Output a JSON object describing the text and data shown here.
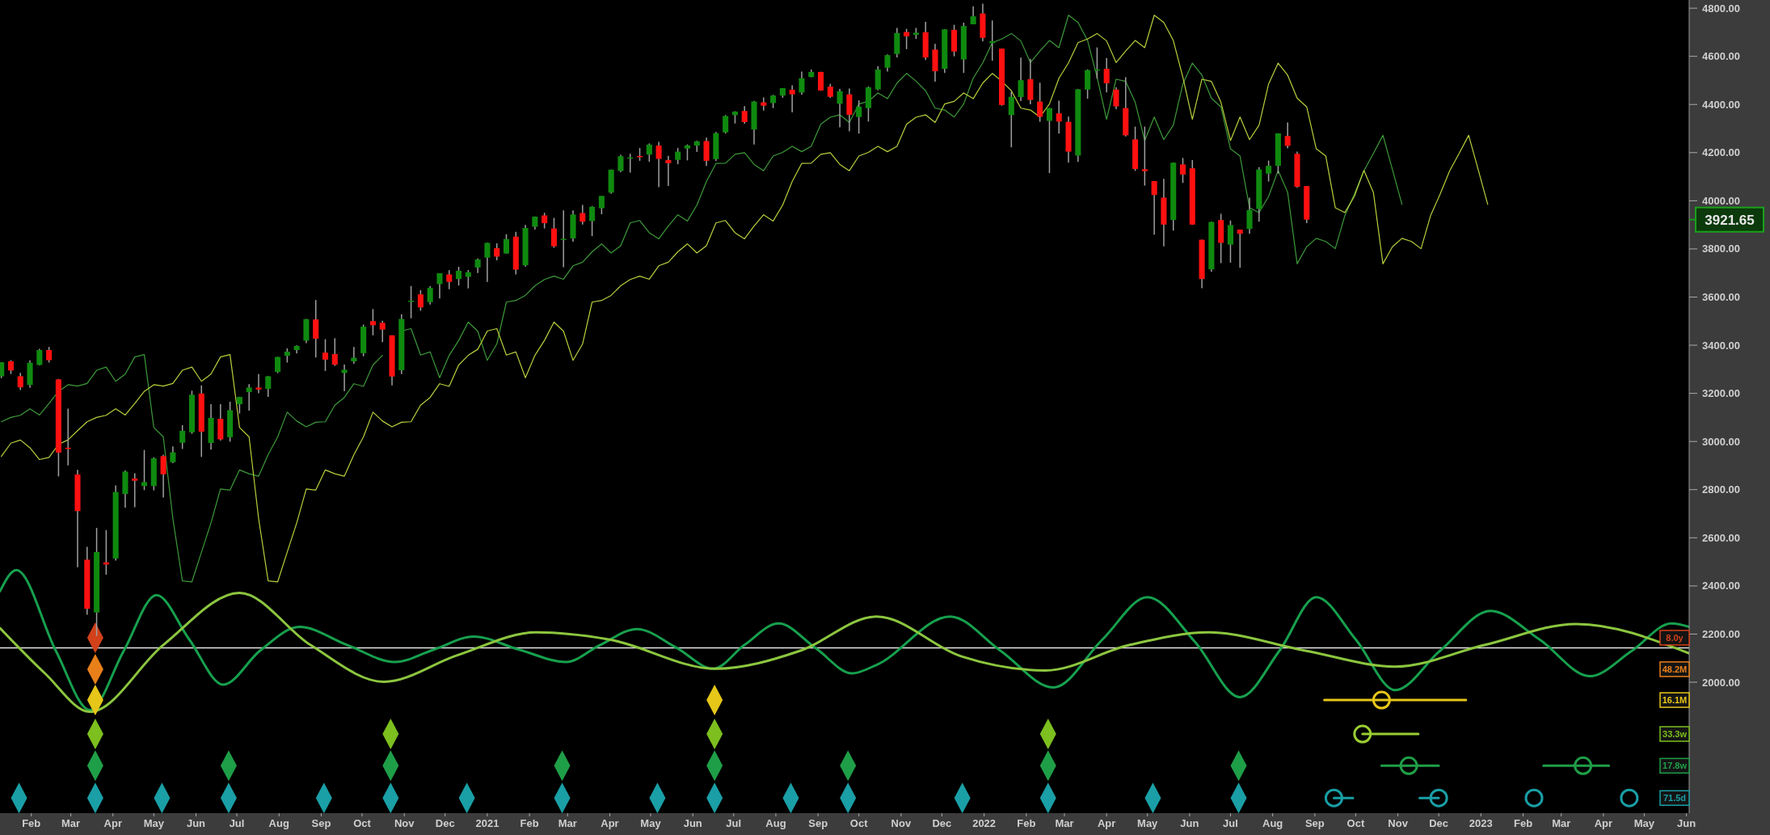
{
  "chart_data": {
    "type": "candlestick",
    "legend": "right",
    "xlim": [
      "2020-01-12",
      "2023-06-06"
    ],
    "ylim": [
      1456,
      4834
    ],
    "yticks": [
      {
        "value": 2000,
        "label": "2000.00"
      },
      {
        "value": 2200,
        "label": "2200.00"
      },
      {
        "value": 2400,
        "label": "2400.00"
      },
      {
        "value": 2600,
        "label": "2600.00"
      },
      {
        "value": 2800,
        "label": "2800.00"
      },
      {
        "value": 3000,
        "label": "3000.00"
      },
      {
        "value": 3200,
        "label": "3200.00"
      },
      {
        "value": 3400,
        "label": "3400.00"
      },
      {
        "value": 3600,
        "label": "3600.00"
      },
      {
        "value": 3800,
        "label": "3800.00"
      },
      {
        "value": 4000,
        "label": "4000.00"
      },
      {
        "value": 4200,
        "label": "4200.00"
      },
      {
        "value": 4400,
        "label": "4400.00"
      },
      {
        "value": 4600,
        "label": "4600.00"
      },
      {
        "value": 4800,
        "label": "4800.00"
      }
    ],
    "xticks": [
      {
        "value": "2020-02-04",
        "label": "Feb"
      },
      {
        "value": "2020-03-04",
        "label": "Mar"
      },
      {
        "value": "2020-04-04",
        "label": "Apr"
      },
      {
        "value": "2020-05-04",
        "label": "May"
      },
      {
        "value": "2020-06-04",
        "label": "Jun"
      },
      {
        "value": "2020-07-04",
        "label": "Jul"
      },
      {
        "value": "2020-08-04",
        "label": "Aug"
      },
      {
        "value": "2020-09-04",
        "label": "Sep"
      },
      {
        "value": "2020-10-04",
        "label": "Oct"
      },
      {
        "value": "2020-11-04",
        "label": "Nov"
      },
      {
        "value": "2020-12-04",
        "label": "Dec"
      },
      {
        "value": "2021-01-04",
        "label": "2021"
      },
      {
        "value": "2021-02-04",
        "label": "Feb"
      },
      {
        "value": "2021-03-04",
        "label": "Mar"
      },
      {
        "value": "2021-04-04",
        "label": "Apr"
      },
      {
        "value": "2021-05-04",
        "label": "May"
      },
      {
        "value": "2021-06-04",
        "label": "Jun"
      },
      {
        "value": "2021-07-04",
        "label": "Jul"
      },
      {
        "value": "2021-08-04",
        "label": "Aug"
      },
      {
        "value": "2021-09-04",
        "label": "Sep"
      },
      {
        "value": "2021-10-04",
        "label": "Oct"
      },
      {
        "value": "2021-11-04",
        "label": "Nov"
      },
      {
        "value": "2021-12-04",
        "label": "Dec"
      },
      {
        "value": "2022-01-04",
        "label": "2022"
      },
      {
        "value": "2022-02-04",
        "label": "Feb"
      },
      {
        "value": "2022-03-04",
        "label": "Mar"
      },
      {
        "value": "2022-04-04",
        "label": "Apr"
      },
      {
        "value": "2022-05-04",
        "label": "May"
      },
      {
        "value": "2022-06-04",
        "label": "Jun"
      },
      {
        "value": "2022-07-04",
        "label": "Jul"
      },
      {
        "value": "2022-08-04",
        "label": "Aug"
      },
      {
        "value": "2022-09-04",
        "label": "Sep"
      },
      {
        "value": "2022-10-04",
        "label": "Oct"
      },
      {
        "value": "2022-11-04",
        "label": "Nov"
      },
      {
        "value": "2022-12-04",
        "label": "Dec"
      },
      {
        "value": "2023-01-04",
        "label": "2023"
      },
      {
        "value": "2023-02-04",
        "label": "Feb"
      },
      {
        "value": "2023-03-04",
        "label": "Mar"
      },
      {
        "value": "2023-04-04",
        "label": "Apr"
      },
      {
        "value": "2023-05-04",
        "label": "May"
      },
      {
        "value": "2023-06-04",
        "label": "Jun"
      }
    ],
    "x": [
      "2020-01-13",
      "2020-01-20",
      "2020-01-27",
      "2020-02-03",
      "2020-02-10",
      "2020-02-17",
      "2020-02-24",
      "2020-03-02",
      "2020-03-09",
      "2020-03-16",
      "2020-03-23",
      "2020-03-30",
      "2020-04-06",
      "2020-04-13",
      "2020-04-20",
      "2020-04-27",
      "2020-05-04",
      "2020-05-11",
      "2020-05-18",
      "2020-05-25",
      "2020-06-01",
      "2020-06-08",
      "2020-06-15",
      "2020-06-22",
      "2020-06-29",
      "2020-07-06",
      "2020-07-13",
      "2020-07-20",
      "2020-07-27",
      "2020-08-03",
      "2020-08-10",
      "2020-08-17",
      "2020-08-24",
      "2020-08-31",
      "2020-09-07",
      "2020-09-14",
      "2020-09-21",
      "2020-09-28",
      "2020-10-05",
      "2020-10-12",
      "2020-10-19",
      "2020-10-26",
      "2020-11-02",
      "2020-11-09",
      "2020-11-16",
      "2020-11-23",
      "2020-11-30",
      "2020-12-07",
      "2020-12-14",
      "2020-12-21",
      "2020-12-28",
      "2021-01-04",
      "2021-01-11",
      "2021-01-18",
      "2021-01-25",
      "2021-02-01",
      "2021-02-08",
      "2021-02-15",
      "2021-02-22",
      "2021-03-01",
      "2021-03-08",
      "2021-03-15",
      "2021-03-22",
      "2021-03-29",
      "2021-04-05",
      "2021-04-12",
      "2021-04-19",
      "2021-04-26",
      "2021-05-03",
      "2021-05-10",
      "2021-05-17",
      "2021-05-24",
      "2021-05-31",
      "2021-06-07",
      "2021-06-14",
      "2021-06-21",
      "2021-06-28",
      "2021-07-05",
      "2021-07-12",
      "2021-07-19",
      "2021-07-26",
      "2021-08-02",
      "2021-08-09",
      "2021-08-16",
      "2021-08-23",
      "2021-08-30",
      "2021-09-06",
      "2021-09-13",
      "2021-09-20",
      "2021-09-27",
      "2021-10-04",
      "2021-10-11",
      "2021-10-18",
      "2021-10-25",
      "2021-11-01",
      "2021-11-08",
      "2021-11-15",
      "2021-11-22",
      "2021-11-29",
      "2021-12-06",
      "2021-12-13",
      "2021-12-20",
      "2021-12-27",
      "2022-01-03",
      "2022-01-10",
      "2022-01-17",
      "2022-01-24",
      "2022-01-31",
      "2022-02-07",
      "2022-02-14",
      "2022-02-21",
      "2022-02-28",
      "2022-03-07",
      "2022-03-14",
      "2022-03-21",
      "2022-03-28",
      "2022-04-04",
      "2022-04-11",
      "2022-04-18",
      "2022-04-25",
      "2022-05-02",
      "2022-05-09",
      "2022-05-16",
      "2022-05-23",
      "2022-05-30",
      "2022-06-06",
      "2022-06-13",
      "2022-06-20",
      "2022-06-27",
      "2022-07-04",
      "2022-07-11",
      "2022-07-18",
      "2022-07-25",
      "2022-08-01",
      "2022-08-08",
      "2022-08-15",
      "2022-08-22",
      "2022-08-29"
    ],
    "ohlc": [
      [
        3271,
        3329,
        3263,
        3329
      ],
      [
        3333,
        3338,
        3280,
        3295
      ],
      [
        3271,
        3285,
        3214,
        3225
      ],
      [
        3235,
        3337,
        3223,
        3327
      ],
      [
        3318,
        3385,
        3316,
        3380
      ],
      [
        3380,
        3393,
        3328,
        3338
      ],
      [
        3258,
        3260,
        2855,
        2954
      ],
      [
        2974,
        3137,
        2901,
        2972
      ],
      [
        2863,
        2882,
        2478,
        2711
      ],
      [
        2509,
        2562,
        2280,
        2305
      ],
      [
        2290,
        2641,
        2192,
        2541
      ],
      [
        2498,
        2632,
        2447,
        2489
      ],
      [
        2514,
        2818,
        2505,
        2790
      ],
      [
        2782,
        2880,
        2725,
        2875
      ],
      [
        2846,
        2868,
        2727,
        2837
      ],
      [
        2815,
        2965,
        2798,
        2831
      ],
      [
        2815,
        2934,
        2797,
        2930
      ],
      [
        2939,
        2945,
        2767,
        2864
      ],
      [
        2914,
        2980,
        2910,
        2955
      ],
      [
        2995,
        3068,
        2969,
        3044
      ],
      [
        3038,
        3211,
        3032,
        3194
      ],
      [
        3199,
        3233,
        2936,
        3041
      ],
      [
        2994,
        3155,
        2966,
        3098
      ],
      [
        3094,
        3155,
        3004,
        3009
      ],
      [
        3018,
        3165,
        2999,
        3130
      ],
      [
        3155,
        3186,
        3116,
        3185
      ],
      [
        3205,
        3238,
        3128,
        3224
      ],
      [
        3224,
        3280,
        3200,
        3216
      ],
      [
        3219,
        3272,
        3185,
        3271
      ],
      [
        3289,
        3352,
        3284,
        3351
      ],
      [
        3356,
        3387,
        3328,
        3373
      ],
      [
        3380,
        3399,
        3366,
        3397
      ],
      [
        3419,
        3509,
        3409,
        3508
      ],
      [
        3507,
        3588,
        3349,
        3427
      ],
      [
        3369,
        3425,
        3293,
        3340
      ],
      [
        3363,
        3429,
        3314,
        3319
      ],
      [
        3285,
        3320,
        3209,
        3298
      ],
      [
        3333,
        3393,
        3323,
        3348
      ],
      [
        3367,
        3486,
        3354,
        3477
      ],
      [
        3500,
        3550,
        3441,
        3483
      ],
      [
        3493,
        3502,
        3413,
        3465
      ],
      [
        3441,
        3441,
        3233,
        3270
      ],
      [
        3296,
        3529,
        3280,
        3509
      ],
      [
        3583,
        3646,
        3512,
        3585
      ],
      [
        3611,
        3629,
        3543,
        3557
      ],
      [
        3579,
        3645,
        3569,
        3638
      ],
      [
        3654,
        3699,
        3594,
        3699
      ],
      [
        3694,
        3712,
        3633,
        3663
      ],
      [
        3675,
        3726,
        3648,
        3709
      ],
      [
        3684,
        3712,
        3636,
        3703
      ],
      [
        3723,
        3760,
        3700,
        3756
      ],
      [
        3764,
        3826,
        3663,
        3825
      ],
      [
        3803,
        3823,
        3753,
        3768
      ],
      [
        3781,
        3861,
        3780,
        3841
      ],
      [
        3851,
        3871,
        3694,
        3714
      ],
      [
        3732,
        3900,
        3726,
        3887
      ],
      [
        3892,
        3935,
        3880,
        3934
      ],
      [
        3939,
        3950,
        3885,
        3907
      ],
      [
        3885,
        3929,
        3805,
        3811
      ],
      [
        3842,
        3960,
        3724,
        3842
      ],
      [
        3844,
        3960,
        3830,
        3943
      ],
      [
        3949,
        3983,
        3901,
        3913
      ],
      [
        3916,
        3978,
        3853,
        3975
      ],
      [
        3969,
        4020,
        3944,
        4020
      ],
      [
        4034,
        4130,
        4029,
        4129
      ],
      [
        4124,
        4191,
        4119,
        4185
      ],
      [
        4180,
        4195,
        4117,
        4180
      ],
      [
        4186,
        4219,
        4166,
        4181
      ],
      [
        4192,
        4238,
        4162,
        4233
      ],
      [
        4229,
        4245,
        4057,
        4174
      ],
      [
        4169,
        4187,
        4062,
        4156
      ],
      [
        4170,
        4219,
        4152,
        4204
      ],
      [
        4217,
        4234,
        4168,
        4230
      ],
      [
        4229,
        4249,
        4203,
        4247
      ],
      [
        4248,
        4262,
        4145,
        4166
      ],
      [
        4173,
        4286,
        4165,
        4281
      ],
      [
        4284,
        4356,
        4279,
        4352
      ],
      [
        4356,
        4372,
        4321,
        4370
      ],
      [
        4373,
        4393,
        4320,
        4327
      ],
      [
        4296,
        4415,
        4234,
        4412
      ],
      [
        4409,
        4429,
        4375,
        4395
      ],
      [
        4406,
        4440,
        4385,
        4437
      ],
      [
        4437,
        4468,
        4428,
        4468
      ],
      [
        4461,
        4480,
        4367,
        4442
      ],
      [
        4450,
        4537,
        4440,
        4509
      ],
      [
        4514,
        4545,
        4513,
        4535
      ],
      [
        4535,
        4536,
        4457,
        4458
      ],
      [
        4474,
        4486,
        4427,
        4432
      ],
      [
        4403,
        4465,
        4305,
        4455
      ],
      [
        4442,
        4466,
        4288,
        4357
      ],
      [
        4348,
        4417,
        4279,
        4391
      ],
      [
        4385,
        4475,
        4329,
        4471
      ],
      [
        4463,
        4559,
        4459,
        4545
      ],
      [
        4553,
        4608,
        4537,
        4605
      ],
      [
        4610,
        4718,
        4596,
        4697
      ],
      [
        4701,
        4714,
        4630,
        4683
      ],
      [
        4689,
        4718,
        4672,
        4698
      ],
      [
        4700,
        4743,
        4585,
        4595
      ],
      [
        4628,
        4652,
        4495,
        4538
      ],
      [
        4548,
        4713,
        4531,
        4712
      ],
      [
        4710,
        4731,
        4600,
        4620
      ],
      [
        4587,
        4740,
        4531,
        4726
      ],
      [
        4733,
        4808,
        4733,
        4766
      ],
      [
        4778,
        4819,
        4662,
        4677
      ],
      [
        4655,
        4749,
        4582,
        4663
      ],
      [
        4632,
        4632,
        4395,
        4398
      ],
      [
        4356,
        4453,
        4222,
        4432
      ],
      [
        4431,
        4595,
        4414,
        4501
      ],
      [
        4505,
        4590,
        4401,
        4419
      ],
      [
        4412,
        4490,
        4328,
        4349
      ],
      [
        4332,
        4385,
        4115,
        4385
      ],
      [
        4363,
        4416,
        4279,
        4329
      ],
      [
        4328,
        4350,
        4158,
        4204
      ],
      [
        4188,
        4465,
        4162,
        4463
      ],
      [
        4462,
        4546,
        4424,
        4543
      ],
      [
        4541,
        4637,
        4507,
        4546
      ],
      [
        4548,
        4593,
        4450,
        4488
      ],
      [
        4462,
        4471,
        4381,
        4392
      ],
      [
        4385,
        4513,
        4267,
        4272
      ],
      [
        4255,
        4308,
        4124,
        4132
      ],
      [
        4131,
        4308,
        4063,
        4123
      ],
      [
        4082,
        4082,
        3859,
        4024
      ],
      [
        4013,
        4091,
        3811,
        3901
      ],
      [
        3920,
        4159,
        3876,
        4158
      ],
      [
        4151,
        4178,
        4074,
        4109
      ],
      [
        4135,
        4169,
        3900,
        3901
      ],
      [
        3838,
        3838,
        3637,
        3675
      ],
      [
        3715,
        3913,
        3705,
        3912
      ],
      [
        3920,
        3946,
        3741,
        3825
      ],
      [
        3818,
        3918,
        3743,
        3899
      ],
      [
        3880,
        3880,
        3722,
        3863
      ],
      [
        3883,
        4013,
        3863,
        3962
      ],
      [
        3966,
        4140,
        3913,
        4130
      ],
      [
        4113,
        4167,
        4080,
        4145
      ],
      [
        4145,
        4280,
        4113,
        4280
      ],
      [
        4269,
        4325,
        4218,
        4228
      ],
      [
        4195,
        4204,
        4054,
        4058
      ],
      [
        4061,
        4062,
        3907,
        3921.65
      ]
    ],
    "ref_lines": [
      {
        "axis": "y",
        "value": 2143,
        "color": "#e6e6e6"
      }
    ],
    "annotations": [
      "3921.65"
    ],
    "series": [
      {
        "type": "line",
        "color": "#17a04e",
        "x": [
          "2020-01-12",
          "2020-01-24",
          "2020-02-22",
          "2020-03-18",
          "2020-04-12",
          "2020-05-06",
          "2020-05-30",
          "2020-06-24",
          "2020-07-21",
          "2020-08-19",
          "2020-09-23",
          "2020-10-28",
          "2020-11-26",
          "2020-12-25",
          "2021-01-27",
          "2021-03-03",
          "2021-03-28",
          "2021-04-24",
          "2021-05-23",
          "2021-06-19",
          "2021-07-12",
          "2021-08-06",
          "2021-09-02",
          "2021-09-29",
          "2021-10-17",
          "2021-12-10",
          "2022-01-16",
          "2022-02-24",
          "2022-04-01",
          "2022-05-04",
          "2022-06-08",
          "2022-07-11",
          "2022-08-09",
          "2022-09-05",
          "2022-10-04",
          "2022-11-02",
          "2022-12-05",
          "2023-01-11",
          "2023-02-16",
          "2023-03-25",
          "2023-04-25",
          "2023-05-24",
          "2023-06-06"
        ],
        "values": [
          2378,
          2466,
          2131,
          1884,
          2131,
          2362,
          2178,
          1990,
          2131,
          2230,
          2155,
          2084,
          2136,
          2190,
          2136,
          2084,
          2155,
          2221,
          2143,
          2056,
          2155,
          2244,
          2143,
          2037,
          2072,
          2273,
          2131,
          1978,
          2178,
          2353,
          2167,
          1938,
          2131,
          2353,
          2178,
          1967,
          2131,
          2296,
          2178,
          2025,
          2131,
          2244,
          2230
        ]
      },
      {
        "type": "line",
        "color": "#8cc63f",
        "x": [
          "2020-01-12",
          "2020-02-14",
          "2020-03-18",
          "2020-05-11",
          "2020-07-06",
          "2020-08-27",
          "2020-10-20",
          "2020-12-13",
          "2021-02-09",
          "2021-04-03",
          "2021-06-21",
          "2021-08-22",
          "2021-10-17",
          "2021-12-18",
          "2022-02-18",
          "2022-04-21",
          "2022-06-18",
          "2022-08-28",
          "2022-11-02",
          "2023-01-07",
          "2023-03-15",
          "2023-06-06"
        ],
        "values": [
          2225,
          2037,
          1877,
          2155,
          2371,
          2155,
          2002,
          2112,
          2207,
          2178,
          2056,
          2131,
          2273,
          2108,
          2049,
          2155,
          2207,
          2131,
          2065,
          2155,
          2242,
          2120
        ]
      },
      {
        "type": "line",
        "color": "#3d9a3a",
        "x": [
          "2020-01-13",
          "2020-01-20",
          "2020-01-27",
          "2020-02-03",
          "2020-02-10",
          "2020-02-17",
          "2020-02-24",
          "2020-03-02",
          "2020-03-09",
          "2020-03-16",
          "2020-03-23",
          "2020-03-30",
          "2020-04-06",
          "2020-04-13",
          "2020-04-20",
          "2020-04-27",
          "2020-05-04",
          "2020-05-11",
          "2020-05-18",
          "2020-05-25",
          "2020-06-01",
          "2020-06-08",
          "2020-06-15",
          "2020-06-22",
          "2020-06-29",
          "2020-07-06",
          "2020-07-13",
          "2020-07-20",
          "2020-07-27",
          "2020-08-03",
          "2020-08-10",
          "2020-08-17",
          "2020-08-24",
          "2020-08-31",
          "2020-09-07",
          "2020-09-14",
          "2020-09-21",
          "2020-09-28",
          "2020-10-05",
          "2020-10-12",
          "2020-10-19",
          "2020-10-26",
          "2020-11-02",
          "2020-11-09",
          "2020-11-16",
          "2020-11-23",
          "2020-11-30",
          "2020-12-07",
          "2020-12-14",
          "2020-12-21",
          "2020-12-28",
          "2021-01-04",
          "2021-01-11",
          "2021-01-18",
          "2021-01-25",
          "2021-02-01",
          "2021-02-08",
          "2021-02-15",
          "2021-02-22",
          "2021-03-01",
          "2021-03-08",
          "2021-03-15",
          "2021-03-22",
          "2021-03-29",
          "2021-04-05",
          "2021-04-12",
          "2021-04-19",
          "2021-04-26",
          "2021-05-03",
          "2021-05-10",
          "2021-05-17",
          "2021-05-24",
          "2021-05-31",
          "2021-06-07",
          "2021-06-14",
          "2021-06-21",
          "2021-06-28",
          "2021-07-05",
          "2021-07-12",
          "2021-07-19",
          "2021-07-26",
          "2021-08-02",
          "2021-08-09",
          "2021-08-16",
          "2021-08-23",
          "2021-08-30",
          "2021-09-06",
          "2021-09-13",
          "2021-09-20",
          "2021-09-27",
          "2021-10-04",
          "2021-10-11",
          "2021-10-18",
          "2021-10-25",
          "2021-11-01",
          "2021-11-08",
          "2021-11-15",
          "2021-11-22",
          "2021-11-29",
          "2021-12-06",
          "2021-12-13",
          "2021-12-20",
          "2021-12-27",
          "2022-01-03",
          "2022-01-10",
          "2022-01-17",
          "2022-01-24",
          "2022-01-31",
          "2022-02-07",
          "2022-02-14",
          "2022-02-21",
          "2022-02-28",
          "2022-03-07",
          "2022-03-14",
          "2022-03-21",
          "2022-03-28",
          "2022-04-04",
          "2022-04-11",
          "2022-04-18",
          "2022-04-25",
          "2022-05-02",
          "2022-05-09",
          "2022-05-16",
          "2022-05-23",
          "2022-05-30",
          "2022-06-06",
          "2022-06-13",
          "2022-06-20",
          "2022-06-27",
          "2022-07-04",
          "2022-07-11",
          "2022-07-18",
          "2022-07-25",
          "2022-08-01",
          "2022-08-08",
          "2022-08-15",
          "2022-08-22",
          "2022-08-29",
          "2022-09-05",
          "2022-09-12",
          "2022-09-19",
          "2022-09-26",
          "2022-10-03",
          "2022-10-10",
          "2022-10-17",
          "2022-10-24",
          "2022-10-31",
          "2022-11-07"
        ],
        "values": [
          3082,
          3100,
          3109,
          3136,
          3110,
          3158,
          3208,
          3236,
          3230,
          3241,
          3296,
          3309,
          3250,
          3280,
          3351,
          3361,
          3058,
          3019,
          2680,
          2421,
          2417,
          2540,
          2662,
          2803,
          2798,
          2882,
          2866,
          2856,
          2945,
          3019,
          3122,
          3085,
          3061,
          3080,
          3082,
          3151,
          3183,
          3240,
          3229,
          3318,
          3358,
          null,
          3459,
          3469,
          3359,
          3372,
          3265,
          3358,
          3420,
          3496,
          3458,
          3337,
          3405,
          3579,
          3586,
          3607,
          3647,
          3673,
          3687,
          3674,
          3730,
          3745,
          3788,
          3821,
          3783,
          3813,
          3908,
          3918,
          3867,
          3842,
          3895,
          3942,
          3916,
          3982,
          4080,
          4155,
          4156,
          4193,
          4200,
          4151,
          4125,
          4186,
          4201,
          4226,
          4204,
          4226,
          4318,
          4347,
          4357,
          4325,
          4402,
          4413,
          4448,
          4424,
          4489,
          4529,
          4497,
          4457,
          4385,
          4377,
          4348,
          4402,
          4509,
          4573,
          4657,
          4672,
          4695,
          4664,
          4574,
          4622,
          4666,
          4636,
          4771,
          4741,
          4666,
          4514,
          4338,
          4505,
          4496,
          4409,
          4250,
          4348,
          4254,
          4314,
          4485,
          4572,
          4522,
          4426,
          4390,
          4216,
          4186,
          3971,
          3951,
          4018,
          4126,
          4035,
          3738,
          3809,
          3844,
          3831,
          3801,
          3938,
          4027,
          4124,
          4197,
          4272,
          4129,
          3985
        ]
      },
      {
        "type": "line",
        "color": "#b9cf3c",
        "x": [
          "2020-01-13",
          "2020-01-20",
          "2020-01-27",
          "2020-02-03",
          "2020-02-10",
          "2020-02-17",
          "2020-02-24",
          "2020-03-02",
          "2020-03-09",
          "2020-03-16",
          "2020-03-23",
          "2020-03-30",
          "2020-04-06",
          "2020-04-13",
          "2020-04-20",
          "2020-04-27",
          "2020-05-04",
          "2020-05-11",
          "2020-05-18",
          "2020-05-25",
          "2020-06-01",
          "2020-06-08",
          "2020-06-15",
          "2020-06-22",
          "2020-06-29",
          "2020-07-06",
          "2020-07-13",
          "2020-07-20",
          "2020-07-27",
          "2020-08-03",
          "2020-08-10",
          "2020-08-17",
          "2020-08-24",
          "2020-08-31",
          "2020-09-07",
          "2020-09-14",
          "2020-09-21",
          "2020-09-28",
          "2020-10-05",
          "2020-10-12",
          "2020-10-19",
          "2020-10-26",
          "2020-11-02",
          "2020-11-09",
          "2020-11-16",
          "2020-11-23",
          "2020-11-30",
          "2020-12-07",
          "2020-12-14",
          "2020-12-21",
          "2020-12-28",
          "2021-01-04",
          "2021-01-11",
          "2021-01-18",
          "2021-01-25",
          "2021-02-01",
          "2021-02-08",
          "2021-02-15",
          "2021-02-22",
          "2021-03-01",
          "2021-03-08",
          "2021-03-15",
          "2021-03-22",
          "2021-03-29",
          "2021-04-05",
          "2021-04-12",
          "2021-04-19",
          "2021-04-26",
          "2021-05-03",
          "2021-05-10",
          "2021-05-17",
          "2021-05-24",
          "2021-05-31",
          "2021-06-07",
          "2021-06-14",
          "2021-06-21",
          "2021-06-28",
          "2021-07-05",
          "2021-07-12",
          "2021-07-19",
          "2021-07-26",
          "2021-08-02",
          "2021-08-09",
          "2021-08-16",
          "2021-08-23",
          "2021-08-30",
          "2021-09-06",
          "2021-09-13",
          "2021-09-20",
          "2021-09-27",
          "2021-10-04",
          "2021-10-11",
          "2021-10-18",
          "2021-10-25",
          "2021-11-01",
          "2021-11-08",
          "2021-11-15",
          "2021-11-22",
          "2021-11-29",
          "2021-12-06",
          "2021-12-13",
          "2021-12-20",
          "2021-12-27",
          "2022-01-03",
          "2022-01-10",
          "2022-01-17",
          "2022-01-24",
          "2022-01-31",
          "2022-02-07",
          "2022-02-14",
          "2022-02-21",
          "2022-02-28",
          "2022-03-07",
          "2022-03-14",
          "2022-03-21",
          "2022-03-28",
          "2022-04-04",
          "2022-04-11",
          "2022-04-18",
          "2022-04-25",
          "2022-05-02",
          "2022-05-09",
          "2022-05-16",
          "2022-05-23",
          "2022-05-30",
          "2022-06-06",
          "2022-06-13",
          "2022-06-20",
          "2022-06-27",
          "2022-07-04",
          "2022-07-11",
          "2022-07-18",
          "2022-07-25",
          "2022-08-01",
          "2022-08-08",
          "2022-08-15",
          "2022-08-22",
          "2022-08-29",
          "2022-09-05",
          "2022-09-12",
          "2022-09-19",
          "2022-09-26",
          "2022-10-03",
          "2022-10-10",
          "2022-10-17",
          "2022-10-24",
          "2022-10-31",
          "2022-11-07",
          "2022-11-14",
          "2022-11-21",
          "2022-11-28",
          "2022-12-05",
          "2022-12-12",
          "2022-12-19",
          "2022-12-26",
          "2023-01-02",
          "2023-01-09"
        ],
        "values": [
          2938,
          2993,
          3006,
          2974,
          2925,
          2934,
          2988,
          3007,
          3045,
          3082,
          3100,
          3109,
          3136,
          3110,
          3158,
          3208,
          3236,
          3230,
          3241,
          3296,
          3309,
          3250,
          3280,
          3351,
          3361,
          3058,
          3019,
          2680,
          2421,
          2417,
          2540,
          2662,
          2803,
          2798,
          2882,
          2866,
          2856,
          2945,
          3019,
          3122,
          3085,
          3061,
          3080,
          3082,
          3151,
          3183,
          3240,
          3229,
          3318,
          3358,
          3383,
          3459,
          3469,
          3359,
          3372,
          3265,
          3358,
          3420,
          3496,
          3458,
          3337,
          3405,
          3579,
          3586,
          3607,
          3647,
          3673,
          3687,
          3674,
          3730,
          3745,
          3788,
          3821,
          3783,
          3813,
          3908,
          3918,
          3867,
          3842,
          3895,
          3942,
          3916,
          3982,
          4080,
          4155,
          4156,
          4193,
          4200,
          4151,
          4125,
          4186,
          4201,
          4226,
          4204,
          4226,
          4318,
          4347,
          4357,
          4325,
          4402,
          4413,
          4448,
          4424,
          4489,
          4529,
          4497,
          4457,
          4385,
          4377,
          4348,
          4402,
          4509,
          4573,
          4657,
          4672,
          4695,
          4664,
          4574,
          4622,
          4666,
          4636,
          4771,
          4741,
          4666,
          4514,
          4338,
          4505,
          4496,
          4409,
          4250,
          4348,
          4254,
          4314,
          4485,
          4572,
          4522,
          4426,
          4390,
          4216,
          4186,
          3971,
          3951,
          4018,
          4126,
          4035,
          3738,
          3809,
          3844,
          3831,
          3801,
          3938,
          4027,
          4124,
          4197,
          4272,
          4129,
          3985
        ]
      },
      {
        "type": "scatter",
        "name": "8.0y",
        "color": "#d2411a",
        "marker": "diamond",
        "x": [
          "2020-03-22"
        ],
        "values": [
          2185
        ]
      },
      {
        "type": "scatter",
        "name": "48.2M",
        "color": "#e8801a",
        "marker": "diamond",
        "x": [
          "2020-03-22"
        ],
        "values": [
          2054
        ]
      },
      {
        "type": "scatter",
        "name": "16.1M",
        "color": "#e6c619",
        "marker": "diamond",
        "x": [
          "2020-03-22",
          "2021-06-20"
        ],
        "values": [
          1926,
          1926
        ]
      },
      {
        "type": "scatter",
        "name": "33.3w",
        "color": "#7cbf1e",
        "marker": "diamond",
        "x": [
          "2020-03-22",
          "2020-10-25",
          "2021-06-20",
          "2022-02-20"
        ],
        "values": [
          1785,
          1785,
          1785,
          1785
        ]
      },
      {
        "type": "scatter",
        "name": "17.8w",
        "color": "#1f9e48",
        "marker": "diamond",
        "x": [
          "2020-03-22",
          "2020-06-28",
          "2020-10-25",
          "2021-02-28",
          "2021-06-20",
          "2021-09-26",
          "2022-02-20",
          "2022-07-10"
        ],
        "values": [
          1653,
          1653,
          1653,
          1653,
          1653,
          1653,
          1653,
          1653
        ]
      },
      {
        "type": "scatter",
        "name": "71.5d",
        "color": "#1a9fa6",
        "marker": "diamond",
        "x": [
          "2020-01-26",
          "2020-03-22",
          "2020-05-10",
          "2020-06-28",
          "2020-09-06",
          "2020-10-25",
          "2020-12-20",
          "2021-02-28",
          "2021-05-09",
          "2021-06-20",
          "2021-08-15",
          "2021-09-26",
          "2021-12-19",
          "2022-02-20",
          "2022-05-08",
          "2022-07-10"
        ],
        "values": [
          1519,
          1519,
          1519,
          1519,
          1519,
          1519,
          1519,
          1519,
          1519,
          1519,
          1519,
          1519,
          1519,
          1519,
          1519,
          1519
        ]
      },
      {
        "type": "line",
        "color": "#e6c619",
        "x": [
          "2022-09-11",
          "2022-12-24"
        ],
        "values": [
          1926,
          1926
        ]
      },
      {
        "type": "line",
        "color": "#9acd32",
        "x": [
          "2022-10-09",
          "2022-11-19"
        ],
        "values": [
          1785,
          1785
        ]
      },
      {
        "type": "line",
        "color": "#1f9e48",
        "x": [
          "2022-10-23",
          "2022-12-04",
          "2023-01-01",
          "2023-02-19",
          "2023-04-08"
        ],
        "values": [
          1653,
          1653,
          null,
          1653,
          1653
        ]
      },
      {
        "type": "line",
        "color": "#1a9fa6",
        "x": [
          "2022-09-18",
          "2022-10-02",
          "2022-10-20",
          "2022-11-20",
          "2022-12-04"
        ],
        "values": [
          1519,
          1519,
          null,
          1519,
          1519
        ]
      },
      {
        "type": "scatter",
        "color": "#e6c619",
        "marker": "circle",
        "x": [
          "2022-10-23"
        ],
        "values": [
          1926
        ]
      },
      {
        "type": "scatter",
        "color": "#9acd32",
        "marker": "circle",
        "x": [
          "2022-10-09"
        ],
        "values": [
          1785
        ]
      },
      {
        "type": "scatter",
        "color": "#1f9e48",
        "marker": "circle",
        "x": [
          "2022-11-12",
          "2023-03-20"
        ],
        "values": [
          1653,
          1653
        ]
      },
      {
        "type": "scatter",
        "color": "#1a9fa6",
        "marker": "circle",
        "x": [
          "2022-09-18",
          "2022-12-04",
          "2023-02-12",
          "2023-04-23"
        ],
        "values": [
          1519,
          1519,
          1519,
          1519
        ]
      }
    ]
  }
}
